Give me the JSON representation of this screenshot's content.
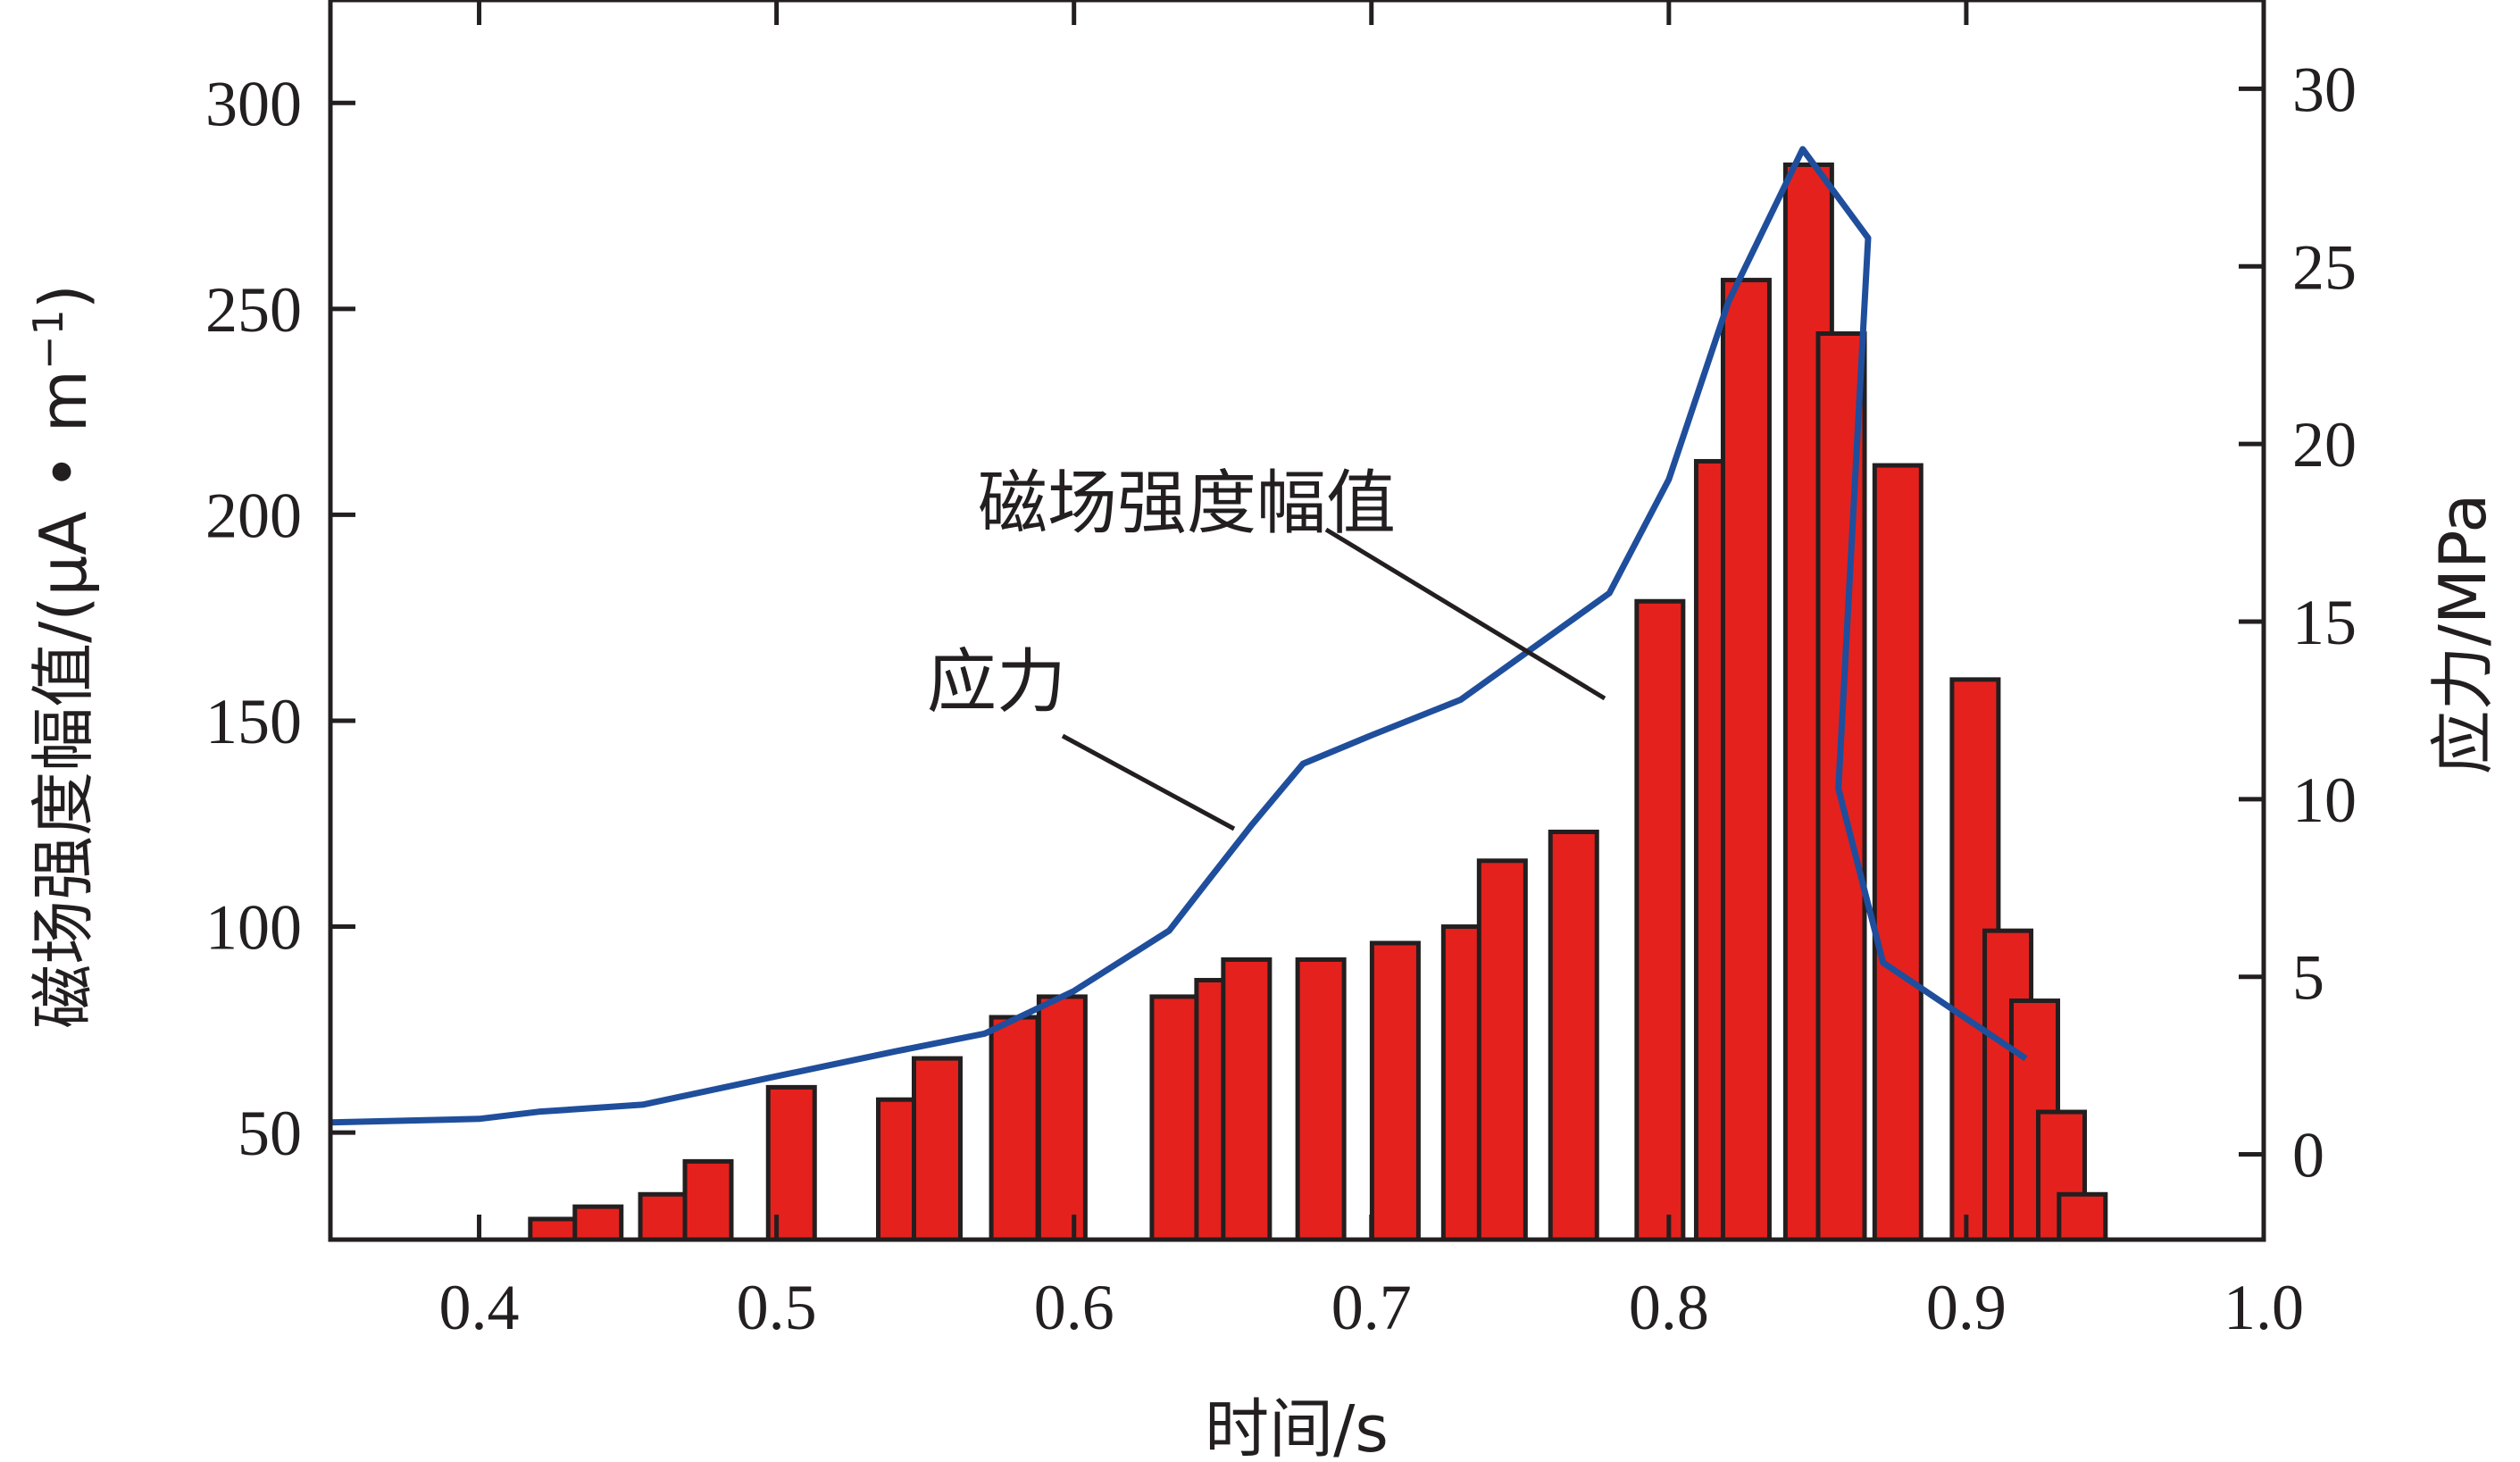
{
  "chart_data": {
    "type": "bar+line",
    "xlabel": "时间/s",
    "ylabel_left": "磁场强度幅值/(μA • m",
    "ylabel_left_sup": "−1",
    "ylabel_left_close": ")",
    "ylabel_right": "应力/MPa",
    "xlim": [
      0.35,
      1.0
    ],
    "ylim_left": [
      24,
      325
    ],
    "ylim_right": [
      -2.4,
      32.5
    ],
    "x_ticks": [
      "0.4",
      "0.5",
      "0.6",
      "0.7",
      "0.8",
      "0.9",
      "1.0"
    ],
    "y_left_ticks": [
      "50",
      "100",
      "150",
      "200",
      "250",
      "300"
    ],
    "y_right_ticks": [
      "0",
      "5",
      "10",
      "15",
      "20",
      "25",
      "30"
    ],
    "bar_color": "#e5211d",
    "line_color": "#1f4e9c",
    "grid": false,
    "bars": {
      "name": "磁场强度幅值",
      "x": [
        0.425,
        0.44,
        0.462,
        0.477,
        0.505,
        0.542,
        0.554,
        0.58,
        0.596,
        0.634,
        0.649,
        0.658,
        0.683,
        0.708,
        0.732,
        0.744,
        0.768,
        0.797,
        0.817,
        0.826,
        0.847,
        0.858,
        0.877,
        0.903,
        0.914,
        0.923,
        0.932,
        0.939
      ],
      "values": [
        29,
        32,
        35,
        43,
        61,
        58,
        68,
        78,
        83,
        83,
        87,
        92,
        92,
        96,
        100,
        116,
        123,
        179,
        213,
        257,
        285,
        244,
        212,
        160,
        99,
        82,
        55,
        35
      ]
    },
    "line": {
      "name": "应力",
      "x": [
        0.35,
        0.4,
        0.42,
        0.455,
        0.5,
        0.54,
        0.57,
        0.6,
        0.632,
        0.645,
        0.66,
        0.677,
        0.7,
        0.73,
        0.78,
        0.8,
        0.82,
        0.845,
        0.867,
        0.857,
        0.872,
        0.92
      ],
      "y": [
        0.9,
        1.0,
        1.2,
        1.4,
        2.2,
        2.9,
        3.4,
        4.6,
        6.3,
        7.7,
        9.3,
        11.0,
        11.8,
        12.8,
        15.8,
        19.0,
        24.0,
        28.3,
        25.8,
        10.3,
        5.4,
        2.7
      ]
    },
    "annotations": [
      "磁场强度幅值",
      "应力"
    ]
  }
}
